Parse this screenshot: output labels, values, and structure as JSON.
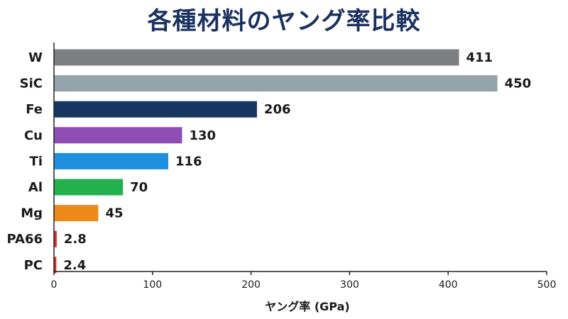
{
  "chart_data": {
    "type": "bar",
    "orientation": "horizontal",
    "title": "各種材料のヤング率比較",
    "xlabel": "ヤング率 (GPa)",
    "ylabel": "",
    "xlim": [
      0,
      500
    ],
    "xticks": [
      0,
      100,
      200,
      300,
      400,
      500
    ],
    "xtick_labels": [
      "0",
      "100",
      "200",
      "300",
      "400",
      "500"
    ],
    "grid": false,
    "categories": [
      "W",
      "SiC",
      "Fe",
      "Cu",
      "Ti",
      "Al",
      "Mg",
      "PA66",
      "PC"
    ],
    "values": [
      411,
      450,
      206,
      130,
      116,
      70,
      45,
      2.8,
      2.4
    ],
    "value_labels": [
      "411",
      "450",
      "206",
      "130",
      "116",
      "70",
      "45",
      "2.8",
      "2.4"
    ],
    "colors": [
      "#7b7f80",
      "#95a4ab",
      "#17365f",
      "#8e4db2",
      "#1f8fe0",
      "#22b14c",
      "#ee8a1c",
      "#e8232a",
      "#e8232a"
    ]
  }
}
